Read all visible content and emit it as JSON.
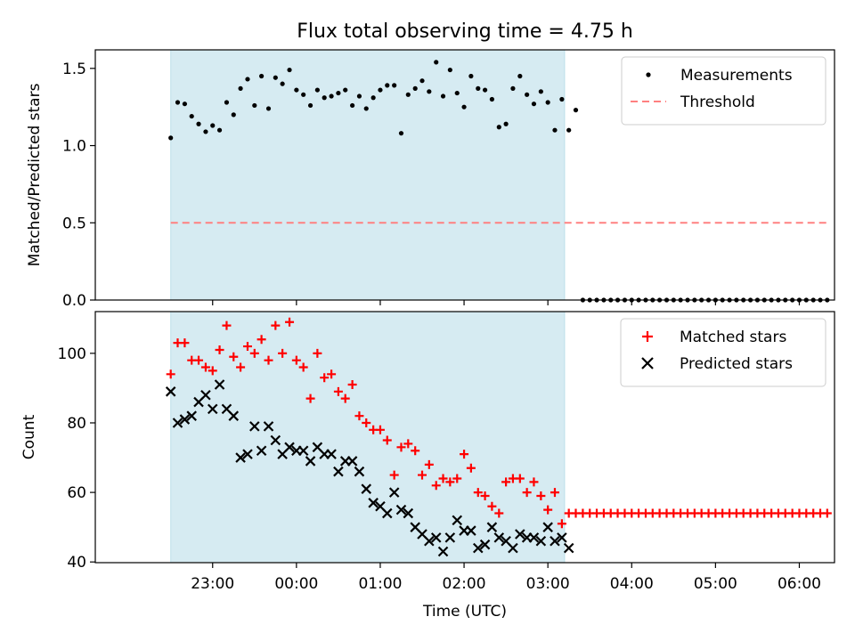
{
  "chart_data": {
    "title": "Flux total observing time = 4.75 h",
    "xlabel": "Time (UTC)",
    "x_unit": "hours after 22:00 UTC",
    "xticks": [
      {
        "x": 1.0,
        "label": "23:00"
      },
      {
        "x": 2.0,
        "label": "00:00"
      },
      {
        "x": 3.0,
        "label": "01:00"
      },
      {
        "x": 4.0,
        "label": "02:00"
      },
      {
        "x": 5.0,
        "label": "03:00"
      },
      {
        "x": 6.0,
        "label": "04:00"
      },
      {
        "x": 7.0,
        "label": "05:00"
      },
      {
        "x": 8.0,
        "label": "06:00"
      }
    ],
    "xlim": [
      -0.4,
      8.42
    ],
    "shaded_span": {
      "x": [
        0.5,
        5.2
      ],
      "color": "#add8e6"
    },
    "panels": [
      {
        "type": "scatter",
        "ylabel": "Matched/Predicted stars",
        "ylim": [
          0,
          1.62
        ],
        "yticks": [
          0,
          0.5,
          1.0,
          1.5
        ],
        "ytick_labels": [
          "0.0",
          "0.5",
          "1.0",
          "1.5"
        ],
        "legend": {
          "position": "top-right",
          "entries": [
            "Measurements",
            "Threshold"
          ]
        },
        "series": [
          {
            "name": "Measurements",
            "marker": "dot",
            "color": "#000000",
            "x": [
              0.5,
              0.583,
              0.667,
              0.75,
              0.833,
              0.917,
              1.0,
              1.083,
              1.167,
              1.25,
              1.333,
              1.417,
              1.5,
              1.583,
              1.667,
              1.75,
              1.833,
              1.917,
              2.0,
              2.083,
              2.167,
              2.25,
              2.333,
              2.417,
              2.5,
              2.583,
              2.667,
              2.75,
              2.833,
              2.917,
              3.0,
              3.083,
              3.167,
              3.25,
              3.333,
              3.417,
              3.5,
              3.583,
              3.667,
              3.75,
              3.833,
              3.917,
              4.0,
              4.083,
              4.167,
              4.25,
              4.333,
              4.417,
              4.5,
              4.583,
              4.667,
              4.75,
              4.833,
              4.917,
              5.0,
              5.083,
              5.167,
              5.25,
              5.333,
              5.417,
              5.5,
              5.583,
              5.667,
              5.75,
              5.833,
              5.917,
              6.0,
              6.083,
              6.167,
              6.25,
              6.333,
              6.417,
              6.5,
              6.583,
              6.667,
              6.75,
              6.833,
              6.917,
              7.0,
              7.083,
              7.167,
              7.25,
              7.333,
              7.417,
              7.5,
              7.583,
              7.667,
              7.75,
              7.833,
              7.917,
              8.0,
              8.083,
              8.167,
              8.25,
              8.333
            ],
            "y": [
              1.05,
              1.28,
              1.27,
              1.19,
              1.14,
              1.09,
              1.13,
              1.1,
              1.28,
              1.2,
              1.37,
              1.43,
              1.26,
              1.45,
              1.24,
              1.44,
              1.4,
              1.49,
              1.36,
              1.33,
              1.26,
              1.36,
              1.31,
              1.32,
              1.34,
              1.36,
              1.26,
              1.32,
              1.24,
              1.31,
              1.36,
              1.39,
              1.39,
              1.08,
              1.33,
              1.37,
              1.42,
              1.35,
              1.54,
              1.32,
              1.49,
              1.34,
              1.25,
              1.45,
              1.37,
              1.36,
              1.3,
              1.12,
              1.14,
              1.37,
              1.45,
              1.33,
              1.27,
              1.35,
              1.28,
              1.1,
              1.3,
              1.1,
              1.23,
              0,
              0,
              0,
              0,
              0,
              0,
              0,
              0,
              0,
              0,
              0,
              0,
              0,
              0,
              0,
              0,
              0,
              0,
              0,
              0,
              0,
              0,
              0,
              0,
              0,
              0,
              0,
              0,
              0,
              0,
              0,
              0,
              0,
              0,
              0,
              0
            ]
          },
          {
            "name": "Threshold",
            "type": "hline",
            "y": 0.5,
            "x_range": [
              0.5,
              8.35
            ],
            "style": "dashed",
            "color": "#ff8080"
          }
        ]
      },
      {
        "type": "scatter",
        "ylabel": "Count",
        "ylim": [
          39.8,
          112
        ],
        "yticks": [
          40,
          60,
          80,
          100
        ],
        "ytick_labels": [
          "40",
          "60",
          "80",
          "100"
        ],
        "legend": {
          "position": "top-right",
          "entries": [
            "Matched stars",
            "Predicted stars"
          ]
        },
        "series": [
          {
            "name": "Matched stars",
            "marker": "plus",
            "color": "#ff0000",
            "x": [
              0.5,
              0.583,
              0.667,
              0.75,
              0.833,
              0.917,
              1.0,
              1.083,
              1.167,
              1.25,
              1.333,
              1.417,
              1.5,
              1.583,
              1.667,
              1.75,
              1.833,
              1.917,
              2.0,
              2.083,
              2.167,
              2.25,
              2.333,
              2.417,
              2.5,
              2.583,
              2.667,
              2.75,
              2.833,
              2.917,
              3.0,
              3.083,
              3.167,
              3.25,
              3.333,
              3.417,
              3.5,
              3.583,
              3.667,
              3.75,
              3.833,
              3.917,
              4.0,
              4.083,
              4.167,
              4.25,
              4.333,
              4.417,
              4.5,
              4.583,
              4.667,
              4.75,
              4.833,
              4.917,
              5.0,
              5.083,
              5.167,
              5.25,
              5.333,
              5.417,
              5.5,
              5.583,
              5.667,
              5.75,
              5.833,
              5.917,
              6.0,
              6.083,
              6.167,
              6.25,
              6.333,
              6.417,
              6.5,
              6.583,
              6.667,
              6.75,
              6.833,
              6.917,
              7.0,
              7.083,
              7.167,
              7.25,
              7.333,
              7.417,
              7.5,
              7.583,
              7.667,
              7.75,
              7.833,
              7.917,
              8.0,
              8.083,
              8.167,
              8.25,
              8.333
            ],
            "y": [
              94,
              103,
              103,
              98,
              98,
              96,
              95,
              101,
              108,
              99,
              96,
              102,
              100,
              104,
              98,
              108,
              100,
              109,
              98,
              96,
              87,
              100,
              93,
              94,
              89,
              87,
              91,
              82,
              80,
              78,
              78,
              75,
              65,
              73,
              74,
              72,
              65,
              68,
              62,
              64,
              63,
              64,
              71,
              67,
              60,
              59,
              56,
              54,
              63,
              64,
              64,
              60,
              63,
              59,
              55,
              60,
              51,
              54,
              54,
              54,
              54,
              54,
              54,
              54,
              54,
              54,
              54,
              54,
              54,
              54,
              54,
              54,
              54,
              54,
              54,
              54,
              54,
              54,
              54,
              54,
              54,
              54,
              54,
              54,
              54,
              54,
              54,
              54,
              54,
              54,
              54,
              54,
              54,
              54,
              54
            ]
          },
          {
            "name": "Predicted stars",
            "marker": "x",
            "color": "#000000",
            "x": [
              0.5,
              0.583,
              0.667,
              0.75,
              0.833,
              0.917,
              1.0,
              1.083,
              1.167,
              1.25,
              1.333,
              1.417,
              1.5,
              1.583,
              1.667,
              1.75,
              1.833,
              1.917,
              2.0,
              2.083,
              2.167,
              2.25,
              2.333,
              2.417,
              2.5,
              2.583,
              2.667,
              2.75,
              2.833,
              2.917,
              3.0,
              3.083,
              3.167,
              3.25,
              3.333,
              3.417,
              3.5,
              3.583,
              3.667,
              3.75,
              3.833,
              3.917,
              4.0,
              4.083,
              4.167,
              4.25,
              4.333,
              4.417,
              4.5,
              4.583,
              4.667,
              4.75,
              4.833,
              4.917,
              5.0,
              5.083,
              5.167,
              5.25
            ],
            "y": [
              89,
              80,
              81,
              82,
              86,
              88,
              84,
              91,
              84,
              82,
              70,
              71,
              79,
              72,
              79,
              75,
              71,
              73,
              72,
              72,
              69,
              73,
              71,
              71,
              66,
              69,
              69,
              66,
              61,
              57,
              56,
              54,
              60,
              55,
              54,
              50,
              48,
              46,
              47,
              43,
              47,
              52,
              49,
              49,
              44,
              45,
              50,
              47,
              46,
              44,
              48,
              47,
              47,
              46,
              50,
              46,
              47,
              44
            ]
          }
        ]
      }
    ]
  }
}
